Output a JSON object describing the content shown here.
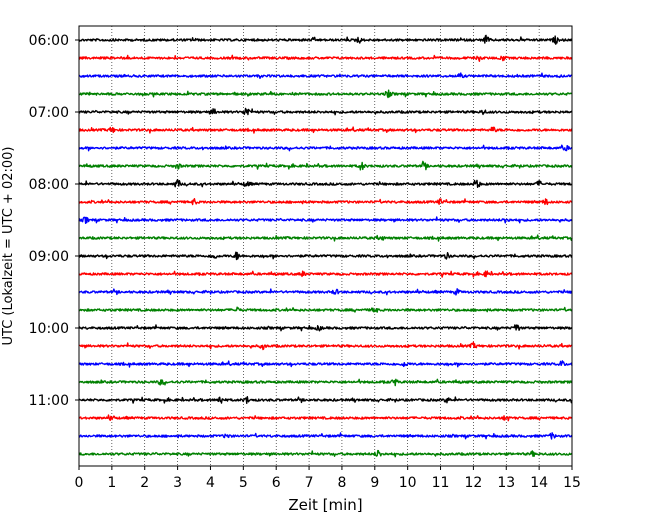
{
  "chart_data": {
    "type": "line",
    "title": "",
    "xlabel": "Zeit  [min]",
    "ylabel": "UTC (Lokalzeit = UTC + 02:00)",
    "xlim": [
      0,
      15
    ],
    "x_ticks": [
      "0",
      "1",
      "2",
      "3",
      "4",
      "5",
      "6",
      "7",
      "8",
      "9",
      "10",
      "11",
      "12",
      "13",
      "14",
      "15"
    ],
    "y_ticks": [
      "06:00",
      "07:00",
      "08:00",
      "09:00",
      "10:00",
      "11:00"
    ],
    "grid": "vertical dotted at each minute",
    "legend": "none",
    "trace_interval_min": 15,
    "trace_colors": [
      "#000000",
      "#ff0000",
      "#0000ff",
      "#008000"
    ],
    "series": [
      {
        "start": "06:00",
        "events": [
          [
            8.5,
            0.6
          ],
          [
            12.4,
            0.9
          ],
          [
            14.5,
            0.6
          ]
        ]
      },
      {
        "start": "06:15",
        "events": [
          [
            12.2,
            0.5
          ],
          [
            12.9,
            0.4
          ]
        ]
      },
      {
        "start": "06:30",
        "events": [
          [
            11.6,
            0.4
          ]
        ]
      },
      {
        "start": "06:45",
        "events": [
          [
            9.4,
            0.6
          ]
        ]
      },
      {
        "start": "07:00",
        "events": [
          [
            4.1,
            0.5
          ],
          [
            5.1,
            1.0
          ],
          [
            12.3,
            0.4
          ]
        ]
      },
      {
        "start": "07:15",
        "events": [
          [
            1.0,
            0.5
          ],
          [
            12.6,
            0.5
          ]
        ]
      },
      {
        "start": "07:30",
        "events": [
          [
            14.8,
            0.5
          ]
        ]
      },
      {
        "start": "07:45",
        "events": [
          [
            3.0,
            0.5
          ],
          [
            8.6,
            0.8
          ],
          [
            10.5,
            0.5
          ]
        ]
      },
      {
        "start": "08:00",
        "events": [
          [
            3.0,
            0.8
          ],
          [
            5.1,
            0.5
          ],
          [
            12.1,
            1.0
          ],
          [
            14.0,
            0.5
          ]
        ]
      },
      {
        "start": "08:15",
        "events": [
          [
            3.5,
            0.5
          ],
          [
            11.0,
            0.5
          ],
          [
            14.2,
            0.5
          ]
        ]
      },
      {
        "start": "08:30",
        "events": [
          [
            0.2,
            0.5
          ],
          [
            13.0,
            0.6
          ]
        ]
      },
      {
        "start": "08:45",
        "events": [
          [
            9.2,
            0.4
          ]
        ]
      },
      {
        "start": "09:00",
        "events": [
          [
            4.1,
            0.5
          ],
          [
            4.8,
            0.7
          ],
          [
            11.2,
            0.5
          ]
        ]
      },
      {
        "start": "09:15",
        "events": [
          [
            6.8,
            0.4
          ],
          [
            12.4,
            0.5
          ]
        ]
      },
      {
        "start": "09:30",
        "events": [
          [
            7.8,
            0.5
          ],
          [
            11.5,
            0.5
          ]
        ]
      },
      {
        "start": "09:45",
        "events": [
          [
            4.8,
            0.5
          ],
          [
            9.0,
            0.6
          ]
        ]
      },
      {
        "start": "10:00",
        "events": [
          [
            7.3,
            0.4
          ],
          [
            13.3,
            0.9
          ]
        ]
      },
      {
        "start": "10:15",
        "events": [
          [
            5.6,
            0.5
          ],
          [
            12.0,
            0.5
          ]
        ]
      },
      {
        "start": "10:30",
        "events": [
          [
            9.9,
            0.4
          ],
          [
            14.7,
            0.5
          ]
        ]
      },
      {
        "start": "10:45",
        "events": [
          [
            2.5,
            0.5
          ],
          [
            9.6,
            0.6
          ]
        ]
      },
      {
        "start": "11:00",
        "events": [
          [
            4.3,
            0.8
          ],
          [
            5.1,
            0.6
          ],
          [
            11.2,
            0.4
          ]
        ]
      },
      {
        "start": "11:15",
        "events": [
          [
            1.0,
            0.4
          ],
          [
            13.0,
            0.6
          ]
        ]
      },
      {
        "start": "11:30",
        "events": [
          [
            4.5,
            0.4
          ],
          [
            14.4,
            0.5
          ]
        ]
      },
      {
        "start": "11:45",
        "events": [
          [
            9.1,
            0.7
          ],
          [
            13.8,
            0.4
          ]
        ]
      }
    ]
  }
}
